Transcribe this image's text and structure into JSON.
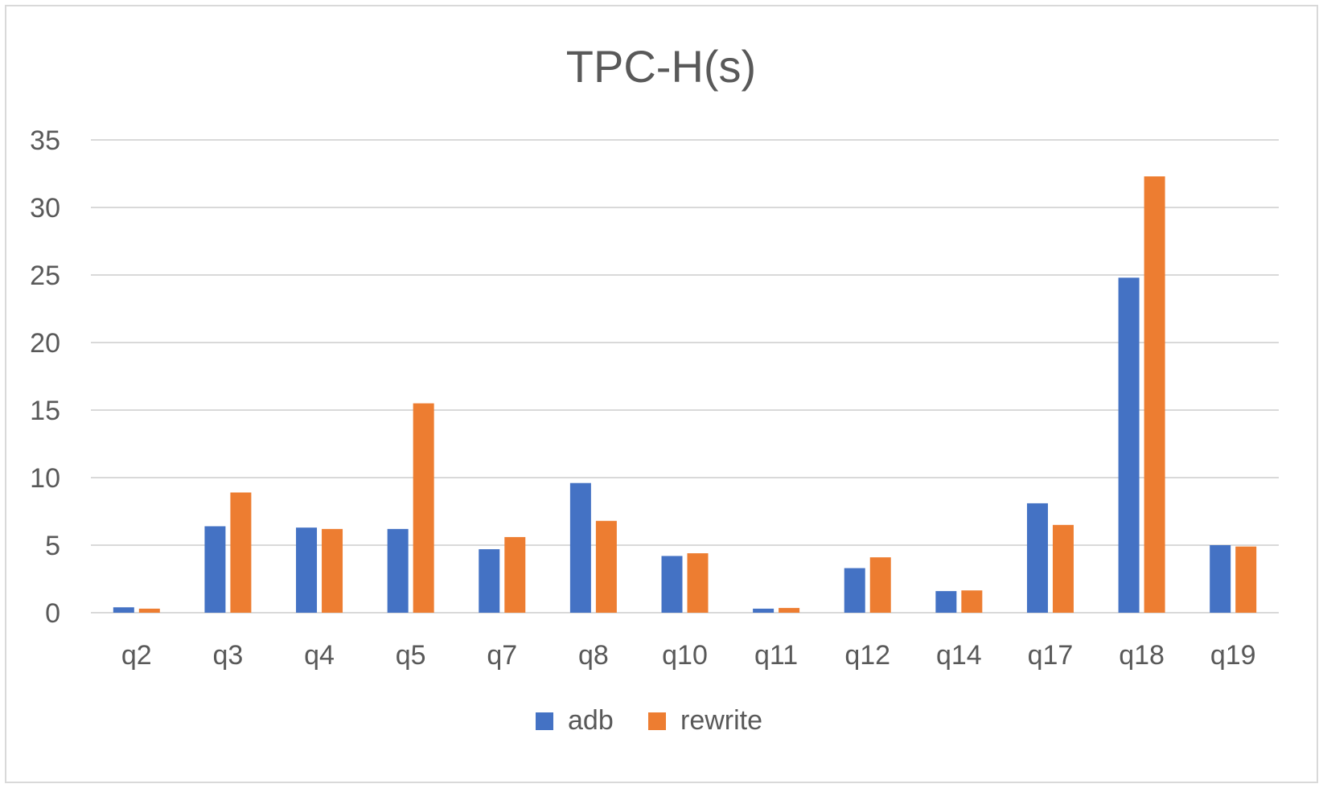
{
  "chart_data": {
    "type": "bar",
    "title": "TPC-H(s)",
    "xlabel": "",
    "ylabel": "",
    "ylim": [
      0,
      35
    ],
    "yticks": [
      0,
      5,
      10,
      15,
      20,
      25,
      30,
      35
    ],
    "grid": true,
    "legend_position": "bottom",
    "categories": [
      "q2",
      "q3",
      "q4",
      "q5",
      "q7",
      "q8",
      "q10",
      "q11",
      "q12",
      "q14",
      "q17",
      "q18",
      "q19"
    ],
    "series": [
      {
        "name": "adb",
        "color": "#4472c4",
        "values": [
          0.4,
          6.4,
          6.3,
          6.2,
          4.7,
          9.6,
          4.2,
          0.3,
          3.3,
          1.6,
          8.1,
          24.8,
          5.0
        ]
      },
      {
        "name": "rewrite",
        "color": "#ed7d31",
        "values": [
          0.3,
          8.9,
          6.2,
          15.5,
          5.6,
          6.8,
          4.4,
          0.35,
          4.1,
          1.65,
          6.5,
          32.3,
          4.9
        ]
      }
    ]
  }
}
